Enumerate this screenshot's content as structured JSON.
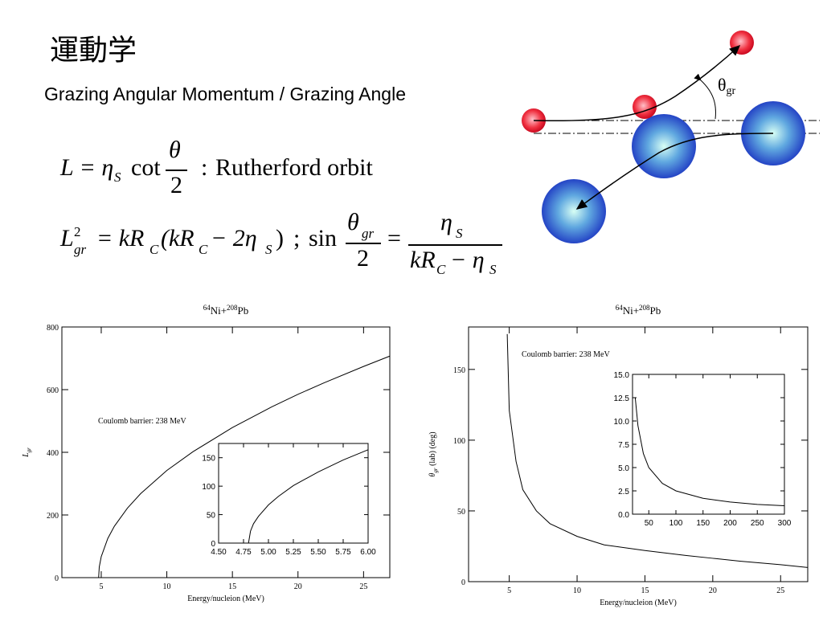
{
  "title": "運動学",
  "subtitle": "Grazing Angular Momentum / Grazing Angle",
  "equations": [
    [
      "L = η",
      "S",
      "cot",
      "θ",
      "2",
      ":",
      "Rutherford orbit"
    ],
    [
      "L",
      "2",
      "gr",
      "= kR",
      "C",
      "(kR",
      "C",
      "− 2η",
      "S",
      ")",
      ";",
      "sin",
      "θ",
      "gr",
      "2",
      "=",
      "η",
      "S",
      "kR",
      "C",
      "− η",
      "S"
    ]
  ],
  "diagram": {
    "angle_symbol": "θ",
    "angle_subscript": "gr"
  },
  "chart_data": [
    {
      "type": "line",
      "title_parts": [
        "64",
        "Ni+",
        "208",
        "Pb"
      ],
      "x": [
        4.8,
        4.85,
        5,
        5.5,
        6,
        7,
        8,
        10,
        12,
        15,
        18,
        20,
        22,
        25,
        27
      ],
      "series": [
        {
          "color": "#000000",
          "values": [
            0,
            34,
            67,
            125,
            164,
            222,
            268,
            342,
            402,
            479,
            545,
            585,
            622,
            674,
            707
          ]
        }
      ],
      "xlim": [
        2,
        27
      ],
      "ylim": [
        0,
        800
      ],
      "xticks": [
        5,
        10,
        15,
        20,
        25
      ],
      "yticks": [
        0,
        200,
        400,
        600,
        800
      ],
      "xlabel": "Energy/nucleion (MeV)",
      "ylabel_parts": [
        "L",
        "gr"
      ],
      "annotation": "Coulomb barrier: 238 MeV"
    },
    {
      "type": "line",
      "x": [
        4.8,
        4.82,
        4.85,
        4.9,
        5,
        5.1,
        5.25,
        5.5,
        5.75,
        6
      ],
      "series": [
        {
          "color": "#000000",
          "values": [
            0,
            21,
            34,
            47,
            67,
            82,
            101,
            125,
            146,
            164
          ]
        }
      ],
      "xlim": [
        4.5,
        6.0
      ],
      "ylim": [
        0,
        175
      ],
      "xticks": [
        {
          "value": 4.5,
          "label": "4.50"
        },
        {
          "value": 4.75,
          "label": "4.75"
        },
        {
          "value": 5,
          "label": "5.00"
        },
        {
          "value": 5.25,
          "label": "5.25"
        },
        {
          "value": 5.5,
          "label": "5.50"
        },
        {
          "value": 5.75,
          "label": "5.75"
        },
        {
          "value": 6,
          "label": "6.00"
        }
      ],
      "yticks": [
        0,
        50,
        100,
        150
      ]
    },
    {
      "type": "line",
      "title_parts": [
        "64",
        "Ni+",
        "208",
        "Pb"
      ],
      "x": [
        4.85,
        5,
        5.5,
        6,
        7,
        8,
        10,
        12,
        15,
        18,
        20,
        22,
        25,
        27
      ],
      "series": [
        {
          "color": "#000000",
          "values": [
            175,
            121,
            85,
            65,
            50,
            41,
            32,
            26,
            22,
            18.5,
            16.5,
            14.5,
            12,
            10
          ]
        }
      ],
      "xlim": [
        2,
        27
      ],
      "ylim": [
        0,
        180
      ],
      "xticks": [
        5,
        10,
        15,
        20,
        25
      ],
      "yticks": [
        0,
        50,
        100,
        150
      ],
      "xlabel": "Energy/nucleion (MeV)",
      "ylabel_parts": [
        "θ",
        "gr",
        " (lab) (deg)"
      ],
      "annotation": "Coulomb barrier: 238 MeV"
    },
    {
      "type": "line",
      "x": [
        25,
        30,
        40,
        50,
        75,
        100,
        150,
        200,
        250,
        300
      ],
      "series": [
        {
          "color": "#000000",
          "values": [
            12.5,
            9.5,
            6.5,
            5,
            3.3,
            2.5,
            1.7,
            1.3,
            1.05,
            0.9
          ]
        }
      ],
      "xlim": [
        20,
        300
      ],
      "ylim": [
        0,
        15
      ],
      "xticks": [
        50,
        100,
        150,
        200,
        250,
        300
      ],
      "yticks": [
        {
          "value": 0,
          "label": "0.0"
        },
        {
          "value": 2.5,
          "label": "2.5"
        },
        {
          "value": 5,
          "label": "5.0"
        },
        {
          "value": 7.5,
          "label": "7.5"
        },
        {
          "value": 10,
          "label": "10.0"
        },
        {
          "value": 12.5,
          "label": "12.5"
        },
        {
          "value": 15,
          "label": "15.0"
        }
      ]
    }
  ]
}
